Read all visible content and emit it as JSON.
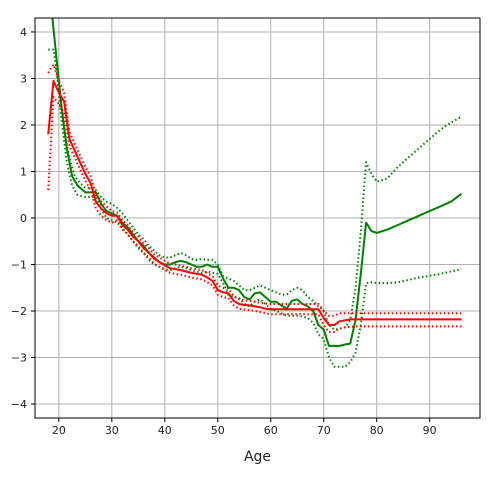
{
  "chart_data": {
    "type": "line",
    "title": "",
    "xlabel": "Age",
    "ylabel": "",
    "xlim": [
      15.5,
      99.5
    ],
    "ylim": [
      -4.3,
      4.3
    ],
    "xticks": [
      20,
      30,
      40,
      50,
      60,
      70,
      80,
      90
    ],
    "yticks": [
      -4,
      -3,
      -2,
      -1,
      0,
      1,
      2,
      3,
      4
    ],
    "grid": true,
    "series": [
      {
        "color": "#008000",
        "style": "solid",
        "x": [
          18.6,
          19.5,
          20.5,
          21.5,
          22.5,
          23.5,
          25,
          26,
          27,
          28,
          29,
          30,
          31,
          32,
          33,
          34,
          35,
          36,
          37,
          38,
          39,
          40,
          41,
          42,
          43,
          44,
          45,
          46,
          47,
          48,
          49,
          50,
          51,
          52,
          53,
          54,
          55,
          56,
          57,
          58,
          59,
          60,
          61,
          62,
          63,
          64,
          65,
          66,
          67,
          68,
          69,
          70,
          71,
          72,
          73,
          74,
          75,
          76,
          77,
          78,
          79,
          80,
          82,
          84,
          86,
          88,
          90,
          92,
          94,
          96
        ],
        "y": [
          4.5,
          3.5,
          2.4,
          1.5,
          0.9,
          0.7,
          0.55,
          0.55,
          0.55,
          0.3,
          0.15,
          0.1,
          0.05,
          -0.1,
          -0.2,
          -0.35,
          -0.5,
          -0.6,
          -0.75,
          -0.85,
          -0.95,
          -1.0,
          -1.0,
          -0.95,
          -0.92,
          -0.95,
          -1.0,
          -1.05,
          -1.05,
          -1.0,
          -1.05,
          -1.05,
          -1.3,
          -1.5,
          -1.5,
          -1.55,
          -1.7,
          -1.75,
          -1.62,
          -1.6,
          -1.7,
          -1.8,
          -1.8,
          -1.88,
          -1.95,
          -1.78,
          -1.75,
          -1.85,
          -1.9,
          -2.0,
          -2.3,
          -2.4,
          -2.75,
          -2.75,
          -2.75,
          -2.72,
          -2.7,
          -2.2,
          -1.2,
          -0.1,
          -0.28,
          -0.32,
          -0.25,
          -0.15,
          -0.05,
          0.05,
          0.15,
          0.25,
          0.35,
          0.52
        ]
      },
      {
        "color": "#008000",
        "style": "dotted",
        "x": [
          18,
          19,
          20,
          21,
          22,
          23,
          24,
          25,
          26,
          27,
          28,
          29,
          30,
          31,
          32,
          33,
          34,
          35,
          36,
          37,
          38,
          39,
          40,
          41,
          42,
          43,
          44,
          45,
          46,
          47,
          48,
          49,
          50,
          51,
          52,
          53,
          54,
          55,
          56,
          57,
          58,
          59,
          60,
          61,
          62,
          63,
          64,
          65,
          66,
          67,
          68,
          69,
          70,
          71,
          72,
          73,
          74,
          75,
          76,
          77,
          78,
          79,
          80,
          82,
          84,
          86,
          88,
          90,
          92,
          94,
          96
        ],
        "y": [
          3.62,
          3.62,
          2.8,
          1.9,
          1.3,
          0.9,
          0.75,
          0.65,
          0.65,
          0.6,
          0.45,
          0.35,
          0.3,
          0.22,
          0.1,
          -0.05,
          -0.2,
          -0.35,
          -0.45,
          -0.6,
          -0.7,
          -0.8,
          -0.85,
          -0.85,
          -0.8,
          -0.75,
          -0.8,
          -0.88,
          -0.9,
          -0.88,
          -0.9,
          -0.9,
          -1.0,
          -1.25,
          -1.3,
          -1.35,
          -1.45,
          -1.55,
          -1.55,
          -1.5,
          -1.45,
          -1.5,
          -1.55,
          -1.6,
          -1.65,
          -1.65,
          -1.55,
          -1.5,
          -1.55,
          -1.7,
          -1.78,
          -1.9,
          -2.0,
          -2.3,
          -2.4,
          -2.38,
          -2.35,
          -2.2,
          -1.5,
          -0.3,
          1.2,
          0.95,
          0.78,
          0.85,
          1.1,
          1.3,
          1.5,
          1.7,
          1.9,
          2.05,
          2.18
        ]
      },
      {
        "color": "#008000",
        "style": "dotted",
        "x": [
          19.5,
          20.5,
          21.5,
          22.5,
          23.5,
          25,
          26,
          27,
          28,
          29,
          30,
          31,
          32,
          33,
          34,
          35,
          36,
          37,
          38,
          39,
          40,
          41,
          42,
          43,
          44,
          45,
          46,
          47,
          48,
          49,
          50,
          51,
          52,
          53,
          54,
          55,
          56,
          57,
          58,
          59,
          60,
          61,
          62,
          63,
          64,
          65,
          66,
          67,
          68,
          69,
          70,
          71,
          72,
          73,
          74,
          75,
          76,
          77,
          78,
          79,
          80,
          82,
          84,
          86,
          88,
          90,
          92,
          94,
          96
        ],
        "y": [
          3.3,
          2.1,
          1.2,
          0.7,
          0.5,
          0.45,
          0.45,
          0.45,
          0.2,
          0.0,
          -0.05,
          -0.1,
          -0.2,
          -0.35,
          -0.5,
          -0.65,
          -0.75,
          -0.9,
          -1.0,
          -1.05,
          -1.1,
          -1.12,
          -1.08,
          -1.05,
          -1.08,
          -1.12,
          -1.15,
          -1.18,
          -1.15,
          -1.18,
          -1.2,
          -1.4,
          -1.65,
          -1.7,
          -1.72,
          -1.85,
          -1.9,
          -1.8,
          -1.75,
          -1.85,
          -1.95,
          -2.0,
          -2.05,
          -2.1,
          -2.1,
          -2.1,
          -2.12,
          -2.15,
          -2.25,
          -2.5,
          -2.6,
          -3.0,
          -3.2,
          -3.2,
          -3.2,
          -3.1,
          -2.9,
          -2.3,
          -1.4,
          -1.38,
          -1.4,
          -1.4,
          -1.38,
          -1.33,
          -1.28,
          -1.24,
          -1.2,
          -1.15,
          -1.1
        ]
      },
      {
        "color": "#ff0000",
        "style": "solid",
        "x": [
          18,
          19,
          20,
          21,
          22,
          23,
          24,
          25,
          26,
          27,
          28,
          29,
          30,
          31,
          32,
          33,
          34,
          35,
          36,
          37,
          38,
          39,
          40,
          41,
          42,
          43,
          44,
          45,
          46,
          47,
          48,
          49,
          50,
          51,
          52,
          53,
          54,
          55,
          56,
          57,
          58,
          59,
          60,
          61,
          62,
          63,
          64,
          65,
          66,
          67,
          68,
          69,
          70,
          71,
          72,
          73,
          74,
          75,
          76,
          77,
          78,
          80,
          82,
          84,
          86,
          88,
          90,
          92,
          94,
          96
        ],
        "y": [
          1.8,
          2.95,
          2.7,
          2.5,
          1.7,
          1.45,
          1.2,
          0.95,
          0.75,
          0.35,
          0.2,
          0.1,
          0.05,
          0.05,
          -0.15,
          -0.25,
          -0.4,
          -0.5,
          -0.65,
          -0.75,
          -0.88,
          -0.95,
          -1.02,
          -1.08,
          -1.1,
          -1.12,
          -1.15,
          -1.18,
          -1.2,
          -1.22,
          -1.28,
          -1.35,
          -1.55,
          -1.6,
          -1.62,
          -1.78,
          -1.85,
          -1.87,
          -1.88,
          -1.9,
          -1.92,
          -1.95,
          -1.96,
          -1.96,
          -1.96,
          -1.96,
          -1.96,
          -1.96,
          -1.96,
          -1.96,
          -1.96,
          -1.96,
          -2.15,
          -2.3,
          -2.3,
          -2.22,
          -2.2,
          -2.18,
          -2.18,
          -2.18,
          -2.18,
          -2.18,
          -2.18,
          -2.18,
          -2.18,
          -2.18,
          -2.18,
          -2.18,
          -2.18,
          -2.18
        ]
      },
      {
        "color": "#ff0000",
        "style": "dotted",
        "x": [
          18,
          19,
          20,
          21,
          22,
          23,
          24,
          25,
          26,
          27,
          28,
          29,
          30,
          31,
          32,
          33,
          34,
          35,
          36,
          37,
          38,
          39,
          40,
          41,
          42,
          43,
          44,
          45,
          46,
          47,
          48,
          49,
          50,
          51,
          52,
          53,
          54,
          55,
          56,
          57,
          58,
          59,
          60,
          61,
          62,
          63,
          64,
          65,
          66,
          67,
          68,
          69,
          70,
          71,
          72,
          73,
          74,
          76,
          78,
          80,
          82,
          84,
          86,
          88,
          90,
          92,
          94,
          96
        ],
        "y": [
          3.12,
          3.3,
          2.95,
          2.7,
          1.85,
          1.6,
          1.35,
          1.1,
          0.9,
          0.5,
          0.35,
          0.25,
          0.15,
          0.12,
          -0.05,
          -0.15,
          -0.3,
          -0.4,
          -0.55,
          -0.65,
          -0.78,
          -0.85,
          -0.92,
          -0.98,
          -1.0,
          -1.02,
          -1.05,
          -1.08,
          -1.1,
          -1.12,
          -1.18,
          -1.25,
          -1.45,
          -1.5,
          -1.52,
          -1.68,
          -1.75,
          -1.77,
          -1.78,
          -1.8,
          -1.82,
          -1.84,
          -1.85,
          -1.85,
          -1.85,
          -1.85,
          -1.85,
          -1.85,
          -1.85,
          -1.85,
          -1.85,
          -1.85,
          -2.0,
          -2.1,
          -2.1,
          -2.05,
          -2.05,
          -2.05,
          -2.05,
          -2.05,
          -2.05,
          -2.05,
          -2.05,
          -2.05,
          -2.05,
          -2.05,
          -2.05,
          -2.05
        ]
      },
      {
        "color": "#ff0000",
        "style": "dotted",
        "x": [
          18,
          19,
          20,
          21,
          22,
          23,
          24,
          25,
          26,
          27,
          28,
          29,
          30,
          31,
          32,
          33,
          34,
          35,
          36,
          37,
          38,
          39,
          40,
          41,
          42,
          43,
          44,
          45,
          46,
          47,
          48,
          49,
          50,
          51,
          52,
          53,
          54,
          55,
          56,
          57,
          58,
          59,
          60,
          61,
          62,
          63,
          64,
          65,
          66,
          67,
          68,
          69,
          70,
          71,
          72,
          73,
          74,
          76,
          78,
          80,
          82,
          84,
          86,
          88,
          90,
          92,
          94,
          96
        ],
        "y": [
          0.6,
          2.6,
          2.45,
          2.25,
          1.55,
          1.3,
          1.05,
          0.8,
          0.6,
          0.2,
          0.05,
          -0.05,
          -0.1,
          -0.05,
          -0.25,
          -0.35,
          -0.5,
          -0.6,
          -0.75,
          -0.85,
          -0.98,
          -1.05,
          -1.12,
          -1.18,
          -1.2,
          -1.22,
          -1.25,
          -1.28,
          -1.3,
          -1.32,
          -1.38,
          -1.45,
          -1.65,
          -1.7,
          -1.72,
          -1.88,
          -1.95,
          -1.97,
          -1.98,
          -2.0,
          -2.02,
          -2.05,
          -2.07,
          -2.07,
          -2.07,
          -2.07,
          -2.07,
          -2.07,
          -2.07,
          -2.07,
          -2.07,
          -2.07,
          -2.3,
          -2.45,
          -2.45,
          -2.38,
          -2.35,
          -2.33,
          -2.33,
          -2.33,
          -2.33,
          -2.33,
          -2.33,
          -2.33,
          -2.33,
          -2.33,
          -2.33,
          -2.33
        ]
      }
    ]
  }
}
